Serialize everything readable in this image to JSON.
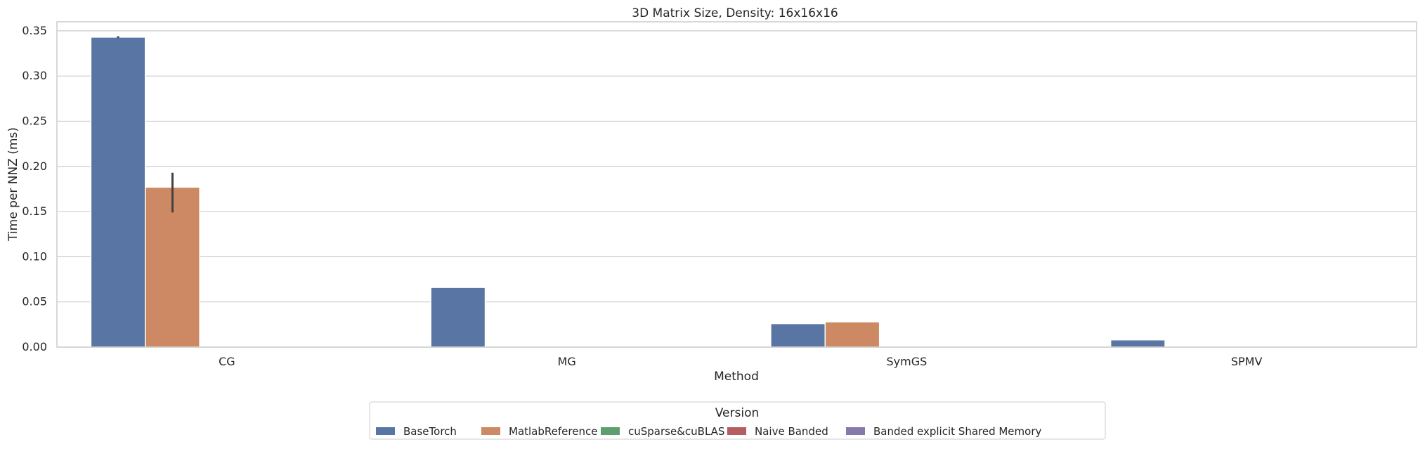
{
  "chart_data": {
    "type": "bar",
    "title": "3D Matrix Size, Density: 16x16x16",
    "xlabel": "Method",
    "ylabel": "Time per NNZ (ms)",
    "categories": [
      "CG",
      "MG",
      "SymGS",
      "SPMV"
    ],
    "ylim": [
      0,
      0.36
    ],
    "yticks": [
      0.0,
      0.05,
      0.1,
      0.15,
      0.2,
      0.25,
      0.3,
      0.35
    ],
    "ytick_labels": [
      "0.00",
      "0.05",
      "0.10",
      "0.15",
      "0.20",
      "0.25",
      "0.30",
      "0.35"
    ],
    "grid": true,
    "legend": {
      "title": "Version",
      "placement": "bottom-center"
    },
    "series": [
      {
        "name": "BaseTorch",
        "color": "#5875a4",
        "values": [
          0.343,
          0.066,
          0.026,
          0.008
        ],
        "error": [
          [
            0.342,
            0.344
          ],
          null,
          null,
          null
        ]
      },
      {
        "name": "MatlabReference",
        "color": "#cc8963",
        "values": [
          0.177,
          null,
          0.028,
          null
        ],
        "error": [
          [
            0.149,
            0.193
          ],
          null,
          null,
          null
        ]
      },
      {
        "name": "cuSparse&cuBLAS",
        "color": "#5f9e6e",
        "values": [
          null,
          null,
          null,
          null
        ]
      },
      {
        "name": "Naive Banded",
        "color": "#b55d60",
        "values": [
          null,
          null,
          null,
          null
        ]
      },
      {
        "name": "Banded explicit Shared Memory",
        "color": "#857aab",
        "values": [
          null,
          null,
          null,
          null
        ]
      }
    ]
  }
}
